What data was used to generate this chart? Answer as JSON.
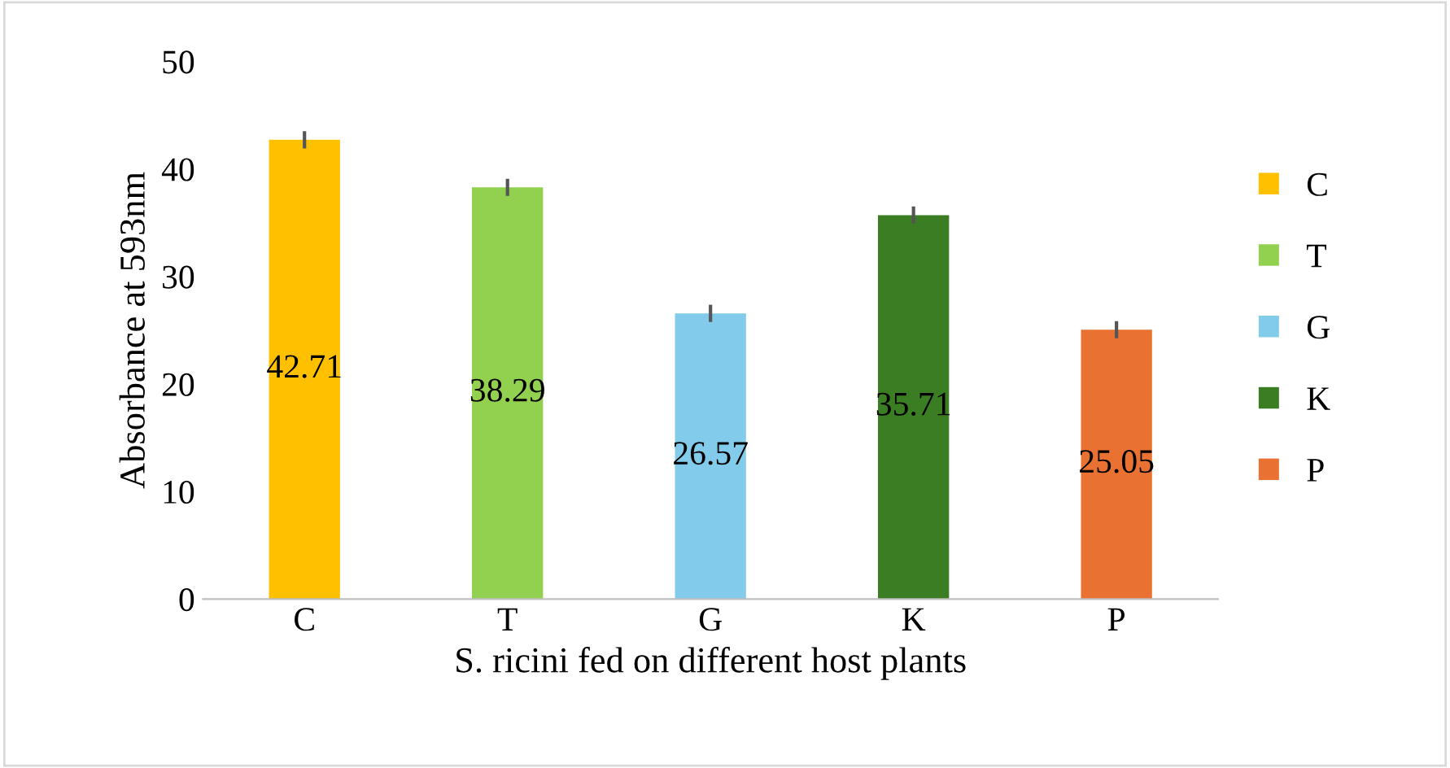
{
  "chart_data": {
    "type": "bar",
    "xlabel": "S. ricini fed on different host plants",
    "ylabel": "Absorbance at 593nm",
    "categories": [
      "C",
      "T",
      "G",
      "K",
      "P"
    ],
    "series": [
      {
        "name": "C",
        "color": "#ffc000",
        "values": [
          42.71,
          null,
          null,
          null,
          null
        ],
        "errors": [
          0.8,
          null,
          null,
          null,
          null
        ]
      },
      {
        "name": "T",
        "color": "#92d050",
        "values": [
          null,
          38.29,
          null,
          null,
          null
        ],
        "errors": [
          null,
          0.8,
          null,
          null,
          null
        ]
      },
      {
        "name": "G",
        "color": "#83cbeb",
        "values": [
          null,
          null,
          26.57,
          null,
          null
        ],
        "errors": [
          null,
          null,
          0.8,
          null,
          null
        ]
      },
      {
        "name": "K",
        "color": "#3a7d22",
        "values": [
          null,
          null,
          null,
          35.71,
          null
        ],
        "errors": [
          null,
          null,
          null,
          0.8,
          null
        ]
      },
      {
        "name": "P",
        "color": "#e97132",
        "values": [
          null,
          null,
          null,
          null,
          25.05
        ],
        "errors": [
          null,
          null,
          null,
          null,
          0.8
        ]
      }
    ],
    "ylim": [
      0,
      50
    ],
    "yticks": [
      0,
      10,
      20,
      30,
      40,
      50
    ],
    "grid": false,
    "legend": "right",
    "data_labels": true
  }
}
